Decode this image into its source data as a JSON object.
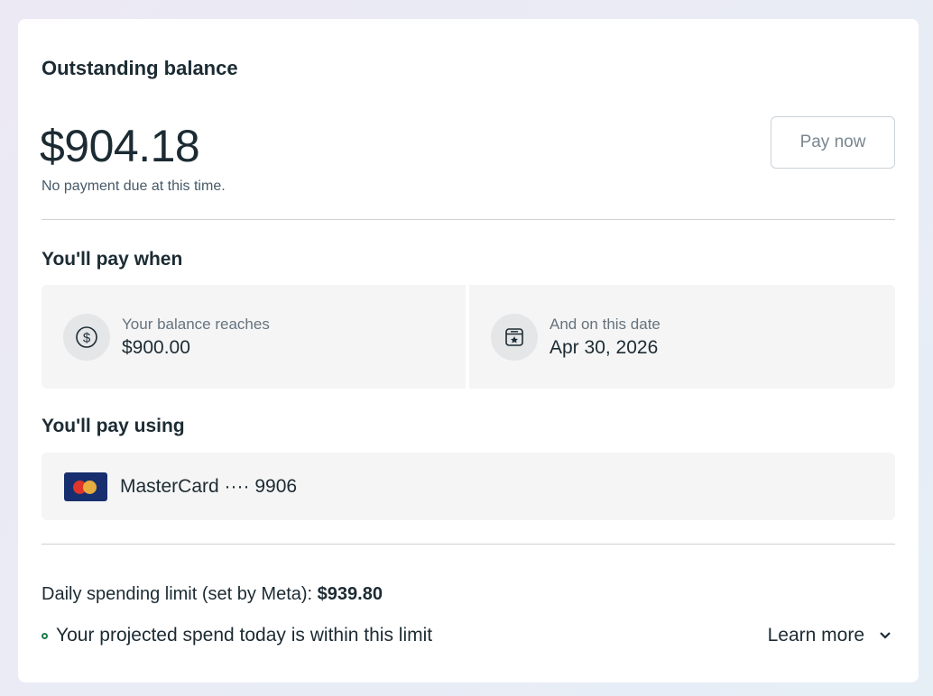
{
  "balance": {
    "title": "Outstanding balance",
    "amount": "$904.18",
    "note": "No payment due at this time.",
    "pay_now_label": "Pay now"
  },
  "pay_when": {
    "title": "You'll pay when",
    "threshold": {
      "label": "Your balance reaches",
      "value": "$900.00",
      "icon": "dollar-circle-icon"
    },
    "date": {
      "label": "And on this date",
      "value": "Apr 30, 2026",
      "icon": "calendar-star-icon"
    }
  },
  "pay_using": {
    "title": "You'll pay using",
    "method": "MasterCard ···· 9906",
    "icon": "mastercard-icon"
  },
  "limit": {
    "label": "Daily spending limit (set by Meta): ",
    "value": "$939.80",
    "status": "Your projected spend today is within this limit",
    "status_color": "#1f7a4d",
    "learn_more": "Learn more"
  }
}
